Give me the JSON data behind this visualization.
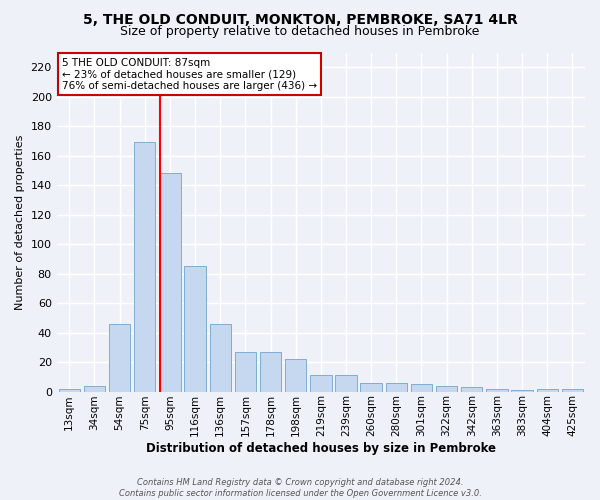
{
  "title": "5, THE OLD CONDUIT, MONKTON, PEMBROKE, SA71 4LR",
  "subtitle": "Size of property relative to detached houses in Pembroke",
  "xlabel": "Distribution of detached houses by size in Pembroke",
  "ylabel": "Number of detached properties",
  "bins": [
    "13sqm",
    "34sqm",
    "54sqm",
    "75sqm",
    "95sqm",
    "116sqm",
    "136sqm",
    "157sqm",
    "178sqm",
    "198sqm",
    "219sqm",
    "239sqm",
    "260sqm",
    "280sqm",
    "301sqm",
    "322sqm",
    "342sqm",
    "363sqm",
    "383sqm",
    "404sqm",
    "425sqm"
  ],
  "values": [
    2,
    4,
    46,
    169,
    148,
    85,
    46,
    27,
    27,
    22,
    11,
    11,
    6,
    6,
    5,
    4,
    3,
    2,
    1,
    2,
    2
  ],
  "bar_color": "#c5d8ef",
  "bar_edge_color": "#7bafd4",
  "red_line_x": 3.62,
  "annotation_text": "5 THE OLD CONDUIT: 87sqm\n← 23% of detached houses are smaller (129)\n76% of semi-detached houses are larger (436) →",
  "annotation_box_color": "#ffffff",
  "annotation_box_edge": "#cc0000",
  "ylim": [
    0,
    230
  ],
  "yticks": [
    0,
    20,
    40,
    60,
    80,
    100,
    120,
    140,
    160,
    180,
    200,
    220
  ],
  "footer": "Contains HM Land Registry data © Crown copyright and database right 2024.\nContains public sector information licensed under the Open Government Licence v3.0.",
  "bg_color": "#eef2f8",
  "grid_color": "#ffffff",
  "title_fontsize": 10,
  "subtitle_fontsize": 9
}
